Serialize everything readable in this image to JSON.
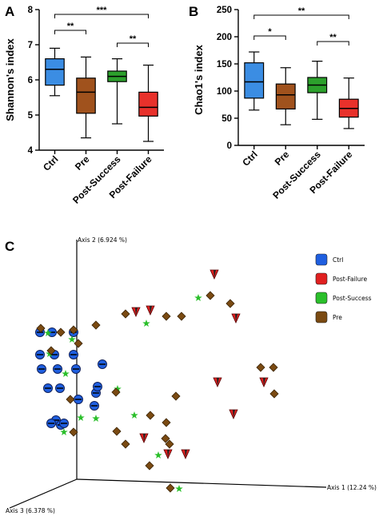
{
  "panels": {
    "a": "A",
    "b": "B",
    "c": "C"
  },
  "chart_data": [
    {
      "type": "box",
      "ylabel": "Shannon's index",
      "ylim": [
        4,
        8
      ],
      "yticks": [
        4,
        5,
        6,
        7,
        8
      ],
      "categories": [
        "Ctrl",
        "Pre",
        "Post-Success",
        "Post-Failure"
      ],
      "colors": [
        "#3b8de3",
        "#a0521d",
        "#2ca02c",
        "#e8312b"
      ],
      "boxes": [
        {
          "min": 5.55,
          "q1": 5.85,
          "median": 6.3,
          "q3": 6.6,
          "max": 6.9
        },
        {
          "min": 4.35,
          "q1": 5.05,
          "median": 5.65,
          "q3": 6.05,
          "max": 6.65
        },
        {
          "min": 4.75,
          "q1": 5.95,
          "median": 6.1,
          "q3": 6.25,
          "max": 6.6
        },
        {
          "min": 4.25,
          "q1": 4.97,
          "median": 5.22,
          "q3": 5.65,
          "max": 6.42
        }
      ],
      "significance": [
        {
          "from": 0,
          "to": 1,
          "label": "**"
        },
        {
          "from": 0,
          "to": 3,
          "label": "***"
        },
        {
          "from": 2,
          "to": 3,
          "label": "**"
        }
      ]
    },
    {
      "type": "box",
      "ylabel": "Chao1's index",
      "ylim": [
        0,
        250
      ],
      "yticks": [
        0,
        50,
        100,
        150,
        200,
        250
      ],
      "categories": [
        "Ctrl",
        "Pre",
        "Post-Success",
        "Post-Failure"
      ],
      "colors": [
        "#3b8de3",
        "#a0521d",
        "#2ca02c",
        "#e8312b"
      ],
      "boxes": [
        {
          "min": 65,
          "q1": 87,
          "median": 117,
          "q3": 152,
          "max": 172
        },
        {
          "min": 38,
          "q1": 67,
          "median": 93,
          "q3": 113,
          "max": 143
        },
        {
          "min": 48,
          "q1": 97,
          "median": 111,
          "q3": 125,
          "max": 155
        },
        {
          "min": 31,
          "q1": 52,
          "median": 68,
          "q3": 85,
          "max": 124
        }
      ],
      "significance": [
        {
          "from": 0,
          "to": 1,
          "label": "*"
        },
        {
          "from": 0,
          "to": 3,
          "label": "**"
        },
        {
          "from": 2,
          "to": 3,
          "label": "**"
        }
      ]
    },
    {
      "type": "scatter",
      "axis_labels": {
        "axis1": "Axis 1 (12.24 %)",
        "axis2": "Axis 2 (6.924 %)",
        "axis3": "Axis 3 (6.378 %)"
      },
      "legend": [
        {
          "name": "Ctrl",
          "color": "#1f5fe0",
          "marker": "circle"
        },
        {
          "name": "Post-Failure",
          "color": "#e02020",
          "marker": "triangle-down"
        },
        {
          "name": "Post-Success",
          "color": "#2bbf2b",
          "marker": "star"
        },
        {
          "name": "Pre",
          "color": "#7a4a12",
          "marker": "diamond"
        }
      ],
      "series": [
        {
          "name": "Ctrl",
          "points": [
            [
              50,
              416
            ],
            [
              65,
              416
            ],
            [
              92,
              416
            ],
            [
              50,
              444
            ],
            [
              68,
              444
            ],
            [
              92,
              444
            ],
            [
              52,
              462
            ],
            [
              72,
              462
            ],
            [
              95,
              462
            ],
            [
              128,
              456
            ],
            [
              60,
              486
            ],
            [
              75,
              486
            ],
            [
              98,
              500
            ],
            [
              120,
              492
            ],
            [
              118,
              508
            ],
            [
              70,
              526
            ],
            [
              64,
              530
            ],
            [
              76,
              532
            ],
            [
              122,
              484
            ],
            [
              80,
              530
            ]
          ]
        },
        {
          "name": "Post-Failure",
          "points": [
            [
              188,
              388
            ],
            [
              268,
              343
            ],
            [
              170,
              390
            ],
            [
              295,
              398
            ],
            [
              272,
              478
            ],
            [
              330,
              478
            ],
            [
              292,
              518
            ],
            [
              180,
              548
            ],
            [
              232,
              568
            ],
            [
              210,
              568
            ]
          ]
        },
        {
          "name": "Post-Success",
          "points": [
            [
              248,
              373
            ],
            [
              183,
              405
            ],
            [
              60,
              417
            ],
            [
              90,
              425
            ],
            [
              62,
              443
            ],
            [
              82,
              468
            ],
            [
              147,
              487
            ],
            [
              101,
              523
            ],
            [
              120,
              524
            ],
            [
              80,
              541
            ],
            [
              168,
              520
            ],
            [
              198,
              570
            ],
            [
              224,
              612
            ]
          ]
        },
        {
          "name": "Pre",
          "points": [
            [
              263,
              370
            ],
            [
              157,
              393
            ],
            [
              120,
              407
            ],
            [
              208,
              396
            ],
            [
              227,
              396
            ],
            [
              92,
              413
            ],
            [
              51,
              411
            ],
            [
              76,
              416
            ],
            [
              64,
              439
            ],
            [
              98,
              430
            ],
            [
              288,
              380
            ],
            [
              145,
              491
            ],
            [
              220,
              496
            ],
            [
              88,
              500
            ],
            [
              208,
              529
            ],
            [
              188,
              520
            ],
            [
              146,
              540
            ],
            [
              157,
              556
            ],
            [
              207,
              549
            ],
            [
              212,
              556
            ],
            [
              187,
              583
            ],
            [
              326,
              460
            ],
            [
              342,
              460
            ],
            [
              343,
              493
            ],
            [
              92,
              541
            ],
            [
              213,
              611
            ]
          ]
        }
      ]
    }
  ]
}
